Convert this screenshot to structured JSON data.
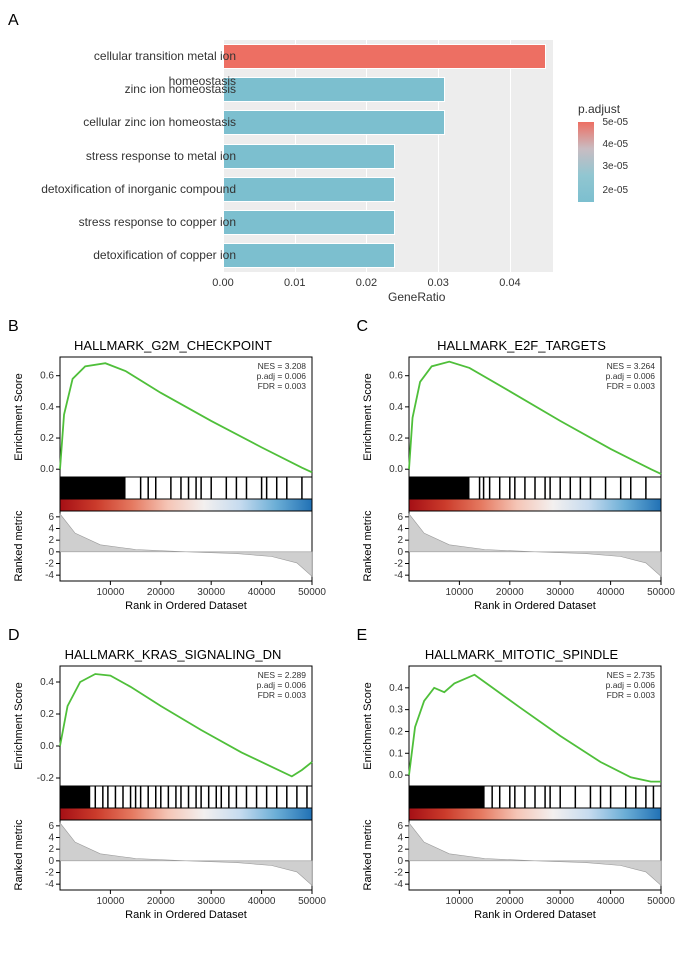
{
  "panelA": {
    "label": "A",
    "xlabel": "GeneRatio",
    "xlim": [
      0,
      0.046
    ],
    "xticks": [
      0.0,
      0.01,
      0.02,
      0.03,
      0.04
    ],
    "background_color": "#ededed",
    "grid_color": "#ffffff",
    "bar_border_color": "#ffffff",
    "legend": {
      "title": "p.adjust",
      "ticks": [
        {
          "label": "5e-05",
          "pos": 0.0
        },
        {
          "label": "4e-05",
          "pos": 0.27
        },
        {
          "label": "3e-05",
          "pos": 0.55
        },
        {
          "label": "2e-05",
          "pos": 0.85
        }
      ],
      "gradient_top": "#ed6f63",
      "gradient_bottom": "#7cbfcf"
    },
    "bars": [
      {
        "label": "cellular transition metal ion homeostasis",
        "value": 0.045,
        "color": "#ed6f63"
      },
      {
        "label": "zinc ion homeostasis",
        "value": 0.031,
        "color": "#7cbfcf"
      },
      {
        "label": "cellular zinc ion homeostasis",
        "value": 0.031,
        "color": "#7cbfcf"
      },
      {
        "label": "stress response to metal ion",
        "value": 0.024,
        "color": "#7cbfcf"
      },
      {
        "label": "detoxification of inorganic compound",
        "value": 0.024,
        "color": "#7cbfcf"
      },
      {
        "label": "stress response to copper ion",
        "value": 0.024,
        "color": "#7cbfcf"
      },
      {
        "label": "detoxification of copper ion",
        "value": 0.024,
        "color": "#7cbfcf"
      }
    ]
  },
  "gsea_common": {
    "xlabel": "Rank in Ordered Dataset",
    "xlim": [
      0,
      50000
    ],
    "xticks": [
      10000,
      20000,
      30000,
      40000,
      50000
    ],
    "es_ylabel": "Enrichment Score",
    "rank_ylabel": "Ranked metric",
    "rank_yticks": [
      6,
      4,
      2,
      0,
      -2,
      -4
    ],
    "rank_ylim": [
      -5,
      7
    ],
    "es_color": "#4fbf3a",
    "heatmap_gradient": [
      "#a50f15",
      "#cb3b2b",
      "#e57960",
      "#f5c5b6",
      "#f3f0ef",
      "#c6dbef",
      "#6baed6",
      "#2171b5"
    ],
    "tick_color": "#000000",
    "panel_bg": "#ffffff",
    "rank_area_fill": "#cfcfcf",
    "rank_area_stroke": "#9a9a9a"
  },
  "gsea": [
    {
      "panel_label": "B",
      "title": "HALLMARK_G2M_CHECKPOINT",
      "stats": {
        "nes": "NES = 3.208",
        "padj": "p.adj = 0.006",
        "fdr": "FDR = 0.003"
      },
      "es_ylim": [
        -0.05,
        0.72
      ],
      "es_yticks": [
        0.0,
        0.2,
        0.4,
        0.6
      ],
      "es_curve": [
        [
          0,
          0
        ],
        [
          800,
          0.35
        ],
        [
          2500,
          0.58
        ],
        [
          5000,
          0.66
        ],
        [
          9000,
          0.68
        ],
        [
          13000,
          0.63
        ],
        [
          20000,
          0.49
        ],
        [
          30000,
          0.31
        ],
        [
          40000,
          0.14
        ],
        [
          48000,
          0.01
        ],
        [
          50000,
          -0.02
        ]
      ],
      "rank_curve": [
        [
          0,
          6.5
        ],
        [
          3000,
          3.2
        ],
        [
          8000,
          1.2
        ],
        [
          15000,
          0.4
        ],
        [
          25000,
          0.0
        ],
        [
          35000,
          -0.3
        ],
        [
          42000,
          -0.8
        ],
        [
          47000,
          -1.9
        ],
        [
          50000,
          -4.2
        ]
      ],
      "hits_dense_end": 13000,
      "hits_sparse": [
        16000,
        17500,
        19000,
        22000,
        24000,
        25500,
        27000,
        28000,
        30000,
        33000,
        35000,
        37000,
        40000,
        41000,
        43000,
        45000,
        48000
      ]
    },
    {
      "panel_label": "C",
      "title": "HALLMARK_E2F_TARGETS",
      "stats": {
        "nes": "NES = 3.264",
        "padj": "p.adj = 0.006",
        "fdr": "FDR = 0.003"
      },
      "es_ylim": [
        -0.05,
        0.72
      ],
      "es_yticks": [
        0.0,
        0.2,
        0.4,
        0.6
      ],
      "es_curve": [
        [
          0,
          0
        ],
        [
          700,
          0.33
        ],
        [
          2200,
          0.56
        ],
        [
          4500,
          0.66
        ],
        [
          8000,
          0.69
        ],
        [
          12000,
          0.65
        ],
        [
          20000,
          0.5
        ],
        [
          30000,
          0.31
        ],
        [
          40000,
          0.13
        ],
        [
          48000,
          0.0
        ],
        [
          50000,
          -0.03
        ]
      ],
      "rank_curve": [
        [
          0,
          6.5
        ],
        [
          3000,
          3.2
        ],
        [
          8000,
          1.2
        ],
        [
          15000,
          0.4
        ],
        [
          25000,
          0.0
        ],
        [
          35000,
          -0.3
        ],
        [
          42000,
          -0.8
        ],
        [
          47000,
          -1.9
        ],
        [
          50000,
          -4.2
        ]
      ],
      "hits_dense_end": 12000,
      "hits_sparse": [
        14000,
        14800,
        16000,
        18000,
        20000,
        21000,
        23000,
        25000,
        27000,
        28000,
        30000,
        32000,
        34000,
        36000,
        39000,
        42000,
        44000,
        47000
      ]
    },
    {
      "panel_label": "D",
      "title": "HALLMARK_KRAS_SIGNALING_DN",
      "stats": {
        "nes": "NES = 2.289",
        "padj": "p.adj = 0.006",
        "fdr": "FDR = 0.003"
      },
      "es_ylim": [
        -0.25,
        0.5
      ],
      "es_yticks": [
        -0.2,
        0.0,
        0.2,
        0.4
      ],
      "es_curve": [
        [
          0,
          0
        ],
        [
          1500,
          0.25
        ],
        [
          4000,
          0.4
        ],
        [
          7000,
          0.45
        ],
        [
          10000,
          0.44
        ],
        [
          14000,
          0.37
        ],
        [
          20000,
          0.25
        ],
        [
          28000,
          0.1
        ],
        [
          36000,
          -0.04
        ],
        [
          42000,
          -0.13
        ],
        [
          46000,
          -0.19
        ],
        [
          48000,
          -0.15
        ],
        [
          50000,
          -0.1
        ]
      ],
      "rank_curve": [
        [
          0,
          6.5
        ],
        [
          3000,
          3.2
        ],
        [
          8000,
          1.2
        ],
        [
          15000,
          0.4
        ],
        [
          25000,
          0.0
        ],
        [
          35000,
          -0.3
        ],
        [
          42000,
          -0.8
        ],
        [
          47000,
          -1.9
        ],
        [
          50000,
          -4.2
        ]
      ],
      "hits_dense_end": 6000,
      "hits_sparse": [
        7000,
        8500,
        9500,
        11000,
        12500,
        14000,
        15000,
        16000,
        17500,
        19000,
        20000,
        21500,
        23000,
        24000,
        25500,
        27000,
        28000,
        29500,
        31000,
        32000,
        33500,
        35000,
        37000,
        39000,
        41000,
        43000,
        45000,
        47000,
        49000
      ]
    },
    {
      "panel_label": "E",
      "title": "HALLMARK_MITOTIC_SPINDLE",
      "stats": {
        "nes": "NES = 2.735",
        "padj": "p.adj = 0.006",
        "fdr": "FDR = 0.003"
      },
      "es_ylim": [
        -0.05,
        0.5
      ],
      "es_yticks": [
        0.0,
        0.1,
        0.2,
        0.3,
        0.4
      ],
      "es_curve": [
        [
          0,
          0
        ],
        [
          1200,
          0.22
        ],
        [
          3000,
          0.34
        ],
        [
          5000,
          0.4
        ],
        [
          7000,
          0.38
        ],
        [
          9000,
          0.42
        ],
        [
          11000,
          0.44
        ],
        [
          13000,
          0.46
        ],
        [
          16000,
          0.41
        ],
        [
          22000,
          0.31
        ],
        [
          30000,
          0.18
        ],
        [
          38000,
          0.06
        ],
        [
          44000,
          -0.01
        ],
        [
          48000,
          -0.03
        ],
        [
          50000,
          -0.03
        ]
      ],
      "rank_curve": [
        [
          0,
          6.5
        ],
        [
          3000,
          3.2
        ],
        [
          8000,
          1.2
        ],
        [
          15000,
          0.4
        ],
        [
          25000,
          0.0
        ],
        [
          35000,
          -0.3
        ],
        [
          42000,
          -0.8
        ],
        [
          47000,
          -1.9
        ],
        [
          50000,
          -4.2
        ]
      ],
      "hits_dense_end": 15000,
      "hits_sparse": [
        16500,
        18000,
        20000,
        21000,
        23000,
        25000,
        27000,
        28000,
        30000,
        33000,
        36000,
        38000,
        40000,
        43000,
        45000,
        47000,
        48500
      ]
    }
  ]
}
